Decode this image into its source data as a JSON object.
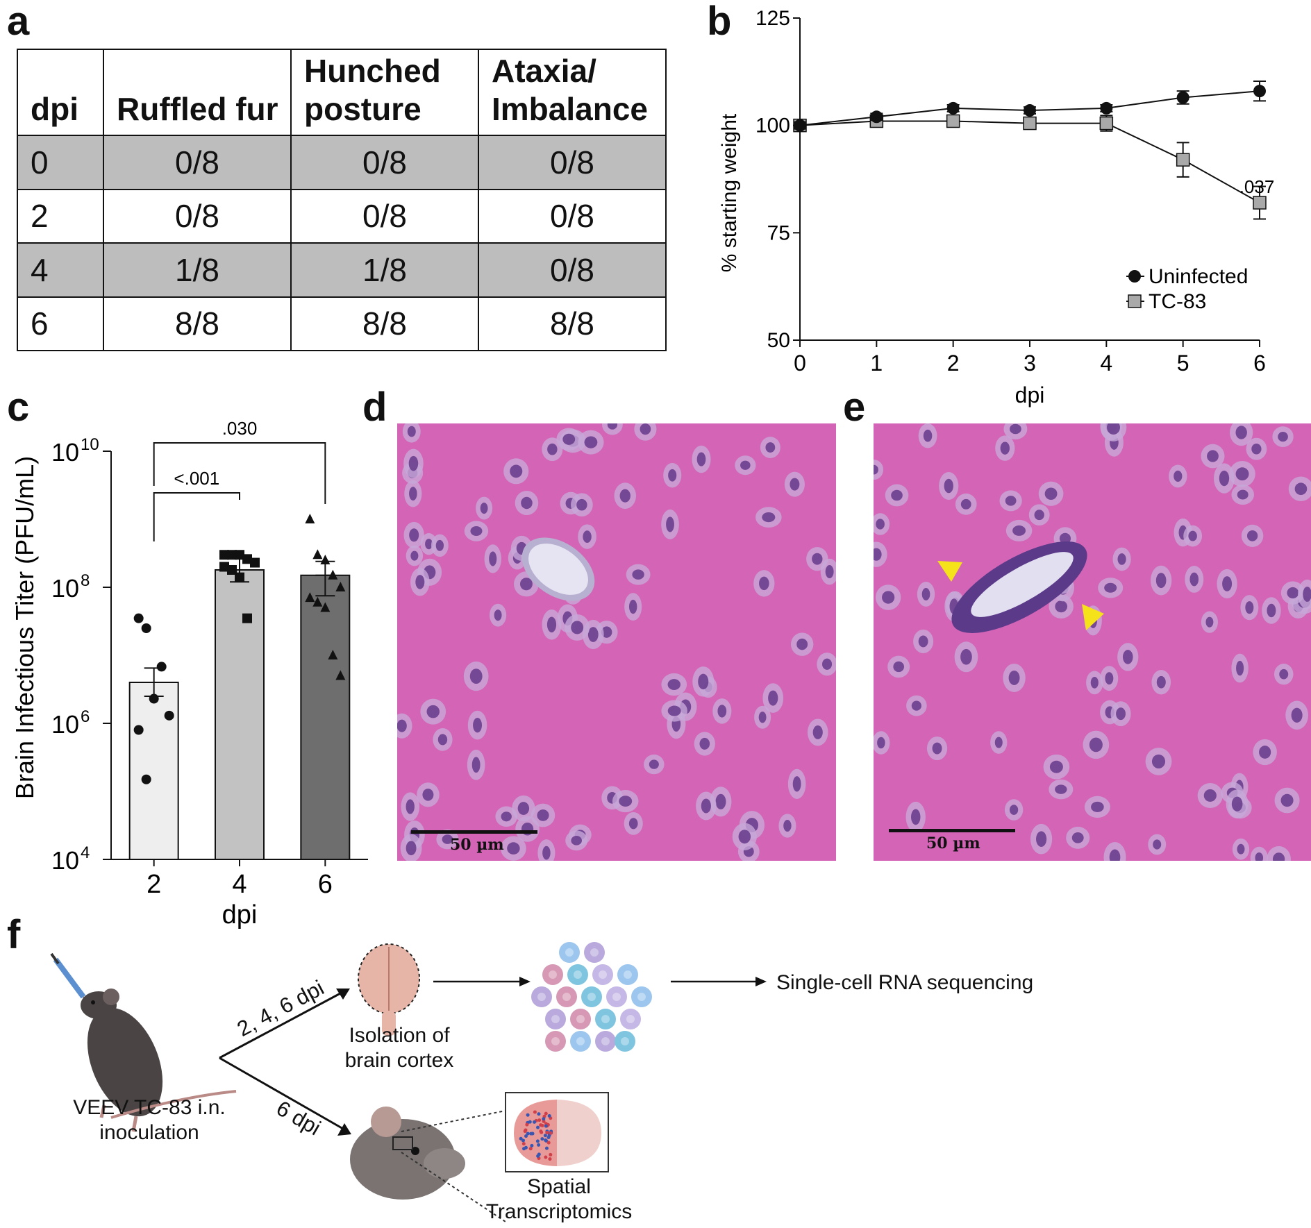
{
  "panels": {
    "a": "a",
    "b": "b",
    "c": "c",
    "d": "d",
    "e": "e",
    "f": "f"
  },
  "colors": {
    "shade": "#bdbdbd",
    "he_pink": "#d464b6",
    "nucleus": "#6a3f8e",
    "arrow_yellow": "#f5e21b",
    "bar_2": "#eeeeee",
    "bar_4": "#c2c2c2",
    "bar_6": "#6e6e6e",
    "tc83_marker": "#a9a9a9"
  },
  "table": {
    "headers": [
      "dpi",
      "Ruffled fur",
      "Hunched posture",
      "Ataxia/ Imbalance"
    ],
    "rows": [
      {
        "dpi": "0",
        "ruffled": "0/8",
        "hunched": "0/8",
        "ataxia": "0/8",
        "shaded": true
      },
      {
        "dpi": "2",
        "ruffled": "0/8",
        "hunched": "0/8",
        "ataxia": "0/8",
        "shaded": false
      },
      {
        "dpi": "4",
        "ruffled": "1/8",
        "hunched": "1/8",
        "ataxia": "0/8",
        "shaded": true
      },
      {
        "dpi": "6",
        "ruffled": "8/8",
        "hunched": "8/8",
        "ataxia": "8/8",
        "shaded": false
      }
    ]
  },
  "chart_data": [
    {
      "type": "line",
      "panel": "b",
      "x": [
        0,
        1,
        2,
        3,
        4,
        5,
        6
      ],
      "xlabel": "dpi",
      "ylabel": "% starting weight",
      "xlim": [
        0,
        6
      ],
      "ylim": [
        50,
        125
      ],
      "yticks": [
        50,
        75,
        100,
        125
      ],
      "series": [
        {
          "name": "Uninfected",
          "marker": "circle",
          "values": [
            100,
            102,
            104,
            103.5,
            104,
            106.5,
            108
          ],
          "err": [
            0.8,
            0.8,
            0.8,
            0.8,
            0.8,
            1.5,
            2.3
          ]
        },
        {
          "name": "TC-83",
          "marker": "square",
          "values": [
            100,
            101,
            101,
            100.5,
            100.5,
            92,
            82
          ],
          "err": [
            0.8,
            0.8,
            0.8,
            0.8,
            1.8,
            4.0,
            3.8
          ]
        }
      ],
      "annotations": [
        {
          "x": 6,
          "y": 87.5,
          "text": ".037"
        }
      ],
      "legend": "bottom-right"
    },
    {
      "type": "bar",
      "panel": "c",
      "categories": [
        "2",
        "4",
        "6"
      ],
      "xlabel": "dpi",
      "ylabel": "Brain Infectious Titer (PFU/mL)",
      "log_scale": true,
      "ylim": [
        10000,
        10000000000
      ],
      "ytick_bases": [
        "10",
        "10",
        "10",
        "10"
      ],
      "ytick_exps": [
        "4",
        "6",
        "8",
        "10"
      ],
      "yticks": [
        4,
        6,
        8,
        10
      ],
      "values": [
        4000000,
        180000000,
        150000000
      ],
      "sem_upper": [
        6500000,
        280000000,
        240000000
      ],
      "sem_lower": [
        2500000,
        120000000,
        75000000
      ],
      "points": [
        {
          "marker": "circle",
          "values": [
            35000000,
            25000000,
            2300000,
            6800000,
            1300000,
            800000,
            150000
          ]
        },
        {
          "marker": "square",
          "values": [
            300000000,
            300000000,
            300000000,
            260000000,
            230000000,
            200000000,
            180000000,
            140000000,
            35000000
          ]
        },
        {
          "marker": "triangle",
          "values": [
            1000000000,
            300000000,
            250000000,
            150000000,
            100000000,
            70000000,
            60000000,
            50000000,
            10000000,
            5000000
          ]
        }
      ],
      "comparisons": [
        {
          "from": "2",
          "to": "4",
          "text": "<.001"
        },
        {
          "from": "2",
          "to": "6",
          "text": ".030"
        }
      ]
    }
  ],
  "histology": {
    "scale_label": "50 µm"
  },
  "schematic": {
    "inoculation": "VEEV TC-83 i.n. inoculation",
    "route_top": "2, 4, 6 dpi",
    "route_bottom": "6 dpi",
    "isolation": "Isolation of brain cortex",
    "scrna": "Single-cell RNA sequencing",
    "spatial": "Spatial Transcriptomics"
  }
}
